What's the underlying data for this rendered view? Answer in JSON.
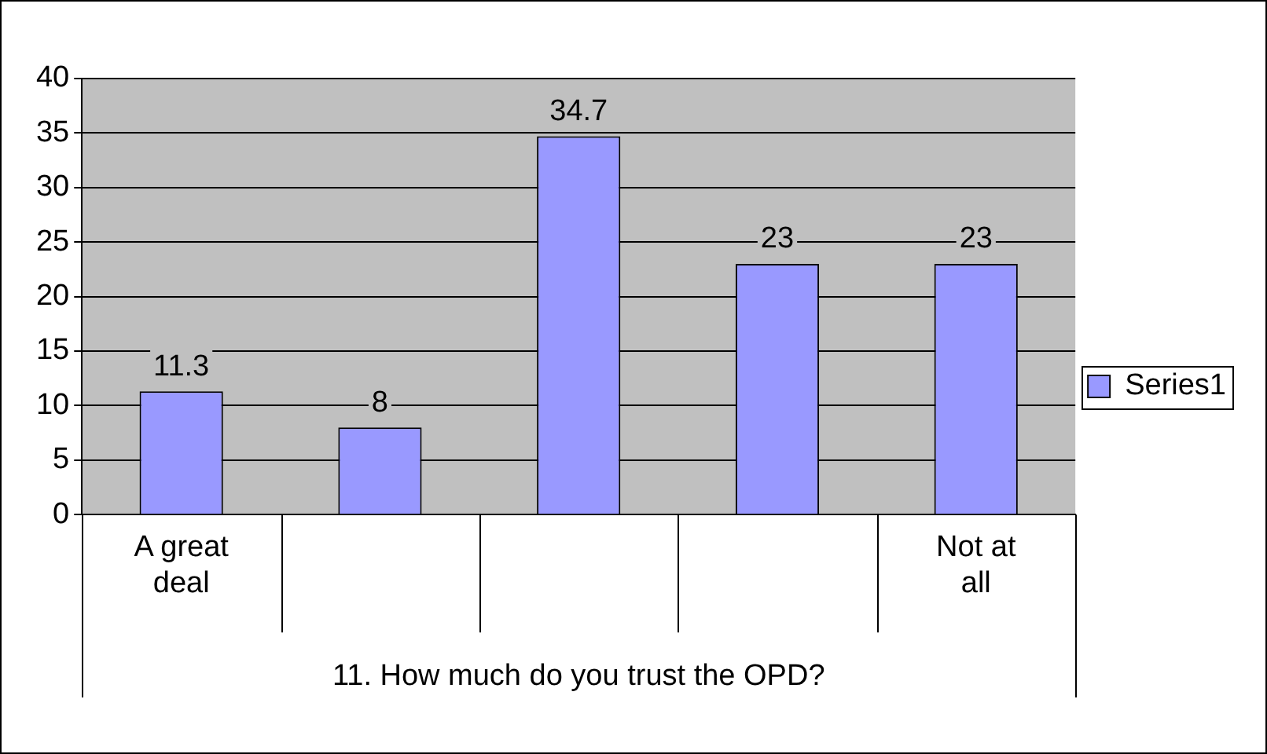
{
  "chart_data": {
    "type": "bar",
    "xlabel": "11. How much do you trust the OPD?",
    "categories": [
      "A great deal",
      null,
      null,
      null,
      "Not at all"
    ],
    "series": [
      {
        "name": "Series1",
        "color": "#9999ff",
        "values": [
          11.3,
          8,
          34.7,
          23,
          23
        ]
      }
    ],
    "ylim": [
      0,
      40
    ],
    "yticks": [
      0,
      5,
      10,
      15,
      20,
      25,
      30,
      35,
      40
    ],
    "grid": "y",
    "legend": "right",
    "data_labels": true
  }
}
